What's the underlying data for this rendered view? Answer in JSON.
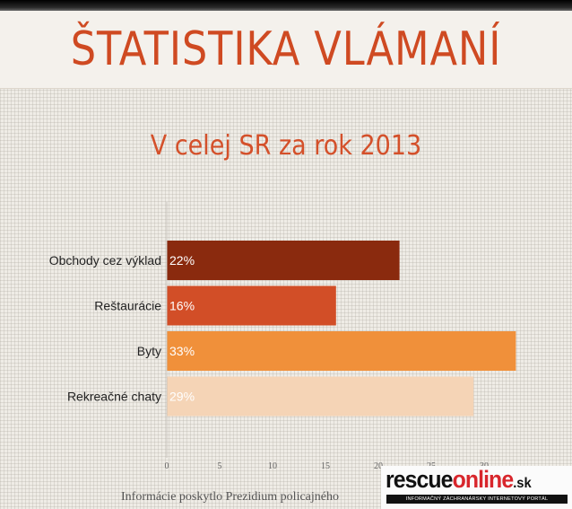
{
  "page": {
    "title": "ŠTATISTIKA VLÁMANÍ",
    "subtitle": "V celej SR za rok 2013",
    "footer": "Informácie poskytlo Prezidium policajného"
  },
  "logo": {
    "part1": "rescue",
    "part2": "online",
    "tld": ".sk",
    "tagline": "INFORMAČNÝ ZÁCHRANÁRSKY INTERNETOVÝ PORTÁL"
  },
  "chart_data": {
    "type": "bar",
    "orientation": "horizontal",
    "categories": [
      "Obchody cez výklad",
      "Reštaurácie",
      "Byty",
      "Rekreačné chaty"
    ],
    "values": [
      22,
      16,
      33,
      29
    ],
    "data_labels": [
      "22%",
      "16%",
      "33%",
      "29%"
    ],
    "bar_colors": [
      "#8a2a0e",
      "#d24e27",
      "#f0903a",
      "#f5d4b6"
    ],
    "label_color": "#ffffff",
    "xlim": [
      0,
      34
    ],
    "xticks": [
      0,
      5,
      10,
      15,
      20,
      25,
      30
    ],
    "grid": false,
    "title": "",
    "xlabel": "",
    "ylabel": ""
  }
}
